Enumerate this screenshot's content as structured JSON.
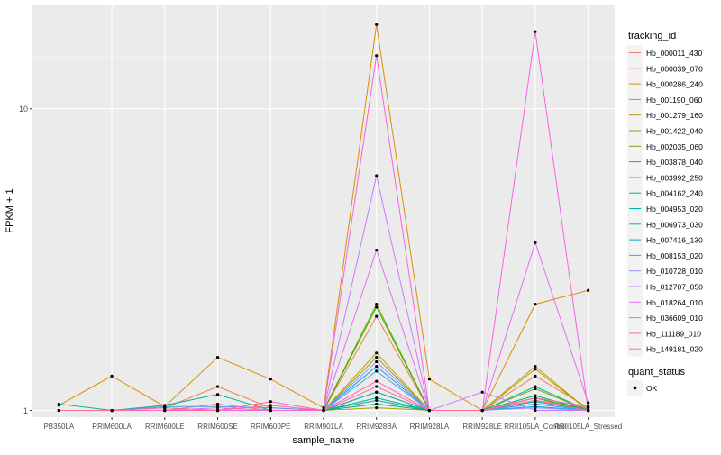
{
  "chart_data": {
    "type": "line",
    "xlabel": "sample_name",
    "ylabel": "FPKM + 1",
    "y_scale": "log10",
    "ylim": [
      0.95,
      22
    ],
    "y_ticks": [
      1,
      10
    ],
    "y_tick_labels": [
      "1",
      "10"
    ],
    "grid": true,
    "legend_position": "right",
    "categories": [
      "PB350LA",
      "RRIM600LA",
      "RRIM600LE",
      "RRIM600SE",
      "RRIM600PE",
      "RRIM901LA",
      "RRIM928BA",
      "RRIM928LA",
      "RRIM928LE",
      "RRII105LA_Control",
      "RRII105LA_Stressed"
    ],
    "legend_title": "tracking_id",
    "series": [
      {
        "name": "Hb_000011_430",
        "color": "#F8766D",
        "values": [
          1.0,
          1.0,
          1.0,
          1.05,
          1.0,
          1.0,
          1.15,
          1.0,
          1.0,
          1.08,
          1.02
        ]
      },
      {
        "name": "Hb_000039_070",
        "color": "#EC823C",
        "values": [
          1.0,
          1.0,
          1.02,
          1.2,
          1.02,
          1.0,
          2.05,
          1.0,
          1.0,
          1.3,
          1.02
        ]
      },
      {
        "name": "Hb_000286_240",
        "color": "#DC8E00",
        "values": [
          1.04,
          1.3,
          1.03,
          1.5,
          1.27,
          1.02,
          19.0,
          1.27,
          1.0,
          2.25,
          2.5
        ]
      },
      {
        "name": "Hb_001190_060",
        "color": "#C99800",
        "values": [
          1.0,
          1.0,
          1.0,
          1.0,
          1.0,
          1.0,
          1.55,
          1.0,
          1.0,
          1.37,
          1.0
        ]
      },
      {
        "name": "Hb_001279_160",
        "color": "#B3A000",
        "values": [
          1.0,
          1.0,
          1.0,
          1.0,
          1.0,
          1.0,
          1.02,
          1.0,
          1.0,
          1.4,
          1.0
        ]
      },
      {
        "name": "Hb_001422_040",
        "color": "#98A600",
        "values": [
          1.0,
          1.0,
          1.0,
          1.0,
          1.0,
          1.0,
          1.5,
          1.0,
          1.0,
          1.1,
          1.0
        ]
      },
      {
        "name": "Hb_002035_060",
        "color": "#77AB00",
        "values": [
          1.0,
          1.0,
          1.0,
          1.0,
          1.0,
          1.0,
          2.25,
          1.0,
          1.0,
          1.18,
          1.0
        ]
      },
      {
        "name": "Hb_003878_040",
        "color": "#3AAF00",
        "values": [
          1.0,
          1.0,
          1.0,
          1.0,
          1.0,
          1.0,
          2.2,
          1.0,
          1.0,
          1.1,
          1.0
        ]
      },
      {
        "name": "Hb_003992_250",
        "color": "#00B25E",
        "values": [
          1.0,
          1.0,
          1.0,
          1.0,
          1.0,
          1.0,
          1.05,
          1.0,
          1.0,
          1.12,
          1.0
        ]
      },
      {
        "name": "Hb_004162_240",
        "color": "#00B38E",
        "values": [
          1.05,
          1.0,
          1.04,
          1.13,
          1.0,
          1.0,
          1.1,
          1.0,
          1.0,
          1.2,
          1.0
        ]
      },
      {
        "name": "Hb_004953_020",
        "color": "#00B2AF",
        "values": [
          1.0,
          1.0,
          1.0,
          1.0,
          1.0,
          1.0,
          1.15,
          1.0,
          1.0,
          1.05,
          1.0
        ]
      },
      {
        "name": "Hb_006973_030",
        "color": "#00ADC6",
        "values": [
          1.0,
          1.0,
          1.0,
          1.0,
          1.0,
          1.0,
          1.08,
          1.0,
          1.0,
          1.07,
          1.0
        ]
      },
      {
        "name": "Hb_007416_130",
        "color": "#00A6DD",
        "values": [
          1.0,
          1.0,
          1.02,
          1.0,
          1.0,
          1.0,
          1.4,
          1.0,
          1.0,
          1.03,
          1.0
        ]
      },
      {
        "name": "Hb_008153_020",
        "color": "#4D9DF8",
        "values": [
          1.0,
          1.0,
          1.03,
          1.03,
          1.02,
          1.0,
          1.35,
          1.0,
          1.0,
          1.05,
          1.0
        ]
      },
      {
        "name": "Hb_010728_010",
        "color": "#9590FF",
        "values": [
          1.0,
          1.0,
          1.0,
          1.0,
          1.0,
          1.0,
          1.45,
          1.0,
          1.0,
          1.02,
          1.0
        ]
      },
      {
        "name": "Hb_012707_050",
        "color": "#C77CFF",
        "values": [
          1.0,
          1.0,
          1.0,
          1.0,
          1.0,
          1.0,
          6.0,
          1.0,
          1.15,
          1.0,
          1.0
        ]
      },
      {
        "name": "Hb_018264_010",
        "color": "#E76BF3",
        "values": [
          1.0,
          1.0,
          1.0,
          1.02,
          1.0,
          1.0,
          3.4,
          1.0,
          1.0,
          3.6,
          1.06
        ]
      },
      {
        "name": "Hb_036609_010",
        "color": "#F763E0",
        "values": [
          1.0,
          1.0,
          1.0,
          1.0,
          1.0,
          1.0,
          15.0,
          1.0,
          1.0,
          18.0,
          1.0
        ]
      },
      {
        "name": "Hb_111189_010",
        "color": "#FF62BC",
        "values": [
          1.0,
          1.0,
          1.0,
          1.0,
          1.07,
          1.0,
          1.25,
          1.0,
          1.0,
          1.1,
          1.03
        ]
      },
      {
        "name": "Hb_149181_020",
        "color": "#FF6C91",
        "values": [
          1.0,
          1.0,
          1.02,
          1.0,
          1.04,
          1.0,
          1.2,
          1.0,
          1.0,
          1.08,
          1.0
        ]
      }
    ],
    "shape_legend": {
      "title": "quant_status",
      "items": [
        "OK"
      ]
    }
  }
}
